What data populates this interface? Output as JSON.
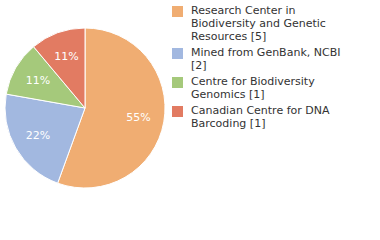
{
  "chart_data": {
    "type": "pie",
    "categories": [
      "Research Center in Biodiversity and Genetic Resources [5]",
      "Mined from GenBank, NCBI [2]",
      "Centre for Biodiversity Genomics [1]",
      "Canadian Centre for DNA Barcoding [1]"
    ],
    "values": [
      55,
      22,
      11,
      11
    ],
    "value_labels": [
      "55%",
      "22%",
      "11%",
      "11%"
    ],
    "colors": [
      "#f0ad72",
      "#a2b8e0",
      "#a5c97b",
      "#e27b62"
    ],
    "data_labels": true,
    "legend": "right"
  }
}
